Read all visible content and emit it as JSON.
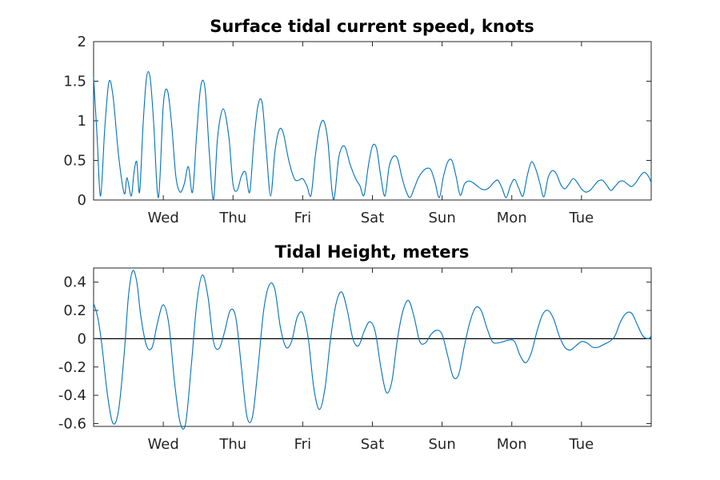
{
  "chart_data": [
    {
      "type": "line",
      "title": "Surface tidal current speed, knots",
      "xlabel": "",
      "ylabel": "",
      "xlim": [
        0,
        8.0
      ],
      "ylim": [
        0,
        2
      ],
      "yticks": [
        "0",
        "0.5",
        "1",
        "1.5",
        "2"
      ],
      "ytick_values": [
        0,
        0.5,
        1,
        1.5,
        2
      ],
      "xticks": [
        "Wed",
        "Thu",
        "Fri",
        "Sat",
        "Sun",
        "Mon",
        "Tue"
      ],
      "xtick_values": [
        1,
        2,
        3,
        4,
        5,
        6,
        7
      ],
      "grid": false,
      "series": [
        {
          "color": "#0072bd",
          "x": [
            0.0,
            0.05,
            0.1,
            0.16,
            0.22,
            0.28,
            0.36,
            0.44,
            0.48,
            0.54,
            0.58,
            0.62,
            0.66,
            0.71,
            0.76,
            0.81,
            0.86,
            0.93,
            1.0,
            1.06,
            1.12,
            1.18,
            1.24,
            1.3,
            1.36,
            1.42,
            1.48,
            1.54,
            1.6,
            1.66,
            1.72,
            1.78,
            1.86,
            1.94,
            2.0,
            2.06,
            2.12,
            2.18,
            2.24,
            2.3,
            2.36,
            2.42,
            2.48,
            2.54,
            2.6,
            2.66,
            2.72,
            2.8,
            2.88,
            2.94,
            3.0,
            3.06,
            3.12,
            3.18,
            3.24,
            3.3,
            3.36,
            3.44,
            3.52,
            3.6,
            3.68,
            3.76,
            3.82,
            3.88,
            3.94,
            4.0,
            4.06,
            4.12,
            4.18,
            4.24,
            4.3,
            4.36,
            4.42,
            4.48,
            4.54,
            4.6,
            4.66,
            4.72,
            4.78,
            4.84,
            4.9,
            4.96,
            5.02,
            5.08,
            5.14,
            5.2,
            5.26,
            5.32,
            5.38,
            5.44,
            5.5,
            5.56,
            5.62,
            5.68,
            5.74,
            5.8,
            5.86,
            5.92,
            5.98,
            6.04,
            6.1,
            6.16,
            6.22,
            6.28,
            6.34,
            6.4,
            6.46,
            6.52,
            6.58,
            6.64,
            6.7,
            6.76,
            6.82,
            6.88,
            6.94,
            7.0,
            7.06,
            7.12,
            7.18,
            7.24,
            7.3,
            7.36,
            7.42,
            7.48,
            7.54,
            7.6,
            7.66,
            7.72,
            7.78,
            7.84,
            7.9,
            7.96,
            8.0
          ],
          "values": [
            1.55,
            0.8,
            0.05,
            0.9,
            1.49,
            1.3,
            0.55,
            0.08,
            0.28,
            0.05,
            0.35,
            0.48,
            0.1,
            0.95,
            1.55,
            1.55,
            1.0,
            0.03,
            1.2,
            1.38,
            0.95,
            0.3,
            0.1,
            0.2,
            0.42,
            0.1,
            0.85,
            1.45,
            1.4,
            0.6,
            0.01,
            0.8,
            1.15,
            0.8,
            0.2,
            0.12,
            0.3,
            0.35,
            0.1,
            0.75,
            1.2,
            1.22,
            0.6,
            0.05,
            0.6,
            0.88,
            0.85,
            0.5,
            0.27,
            0.25,
            0.27,
            0.18,
            0.06,
            0.55,
            0.9,
            1.0,
            0.75,
            0.01,
            0.55,
            0.68,
            0.45,
            0.27,
            0.18,
            0.06,
            0.42,
            0.68,
            0.65,
            0.3,
            0.05,
            0.42,
            0.55,
            0.52,
            0.3,
            0.12,
            0.03,
            0.15,
            0.28,
            0.36,
            0.4,
            0.38,
            0.22,
            0.03,
            0.3,
            0.48,
            0.5,
            0.3,
            0.06,
            0.2,
            0.24,
            0.22,
            0.18,
            0.14,
            0.13,
            0.16,
            0.22,
            0.25,
            0.15,
            0.03,
            0.18,
            0.26,
            0.15,
            0.05,
            0.3,
            0.48,
            0.4,
            0.22,
            0.04,
            0.28,
            0.37,
            0.33,
            0.2,
            0.14,
            0.2,
            0.27,
            0.22,
            0.14,
            0.1,
            0.12,
            0.18,
            0.24,
            0.25,
            0.19,
            0.12,
            0.17,
            0.23,
            0.24,
            0.2,
            0.17,
            0.22,
            0.3,
            0.35,
            0.3,
            0.22
          ]
        }
      ]
    },
    {
      "type": "line",
      "title": "Tidal Height, meters",
      "xlabel": "",
      "ylabel": "",
      "xlim": [
        0,
        8.0
      ],
      "ylim": [
        -0.62,
        0.5
      ],
      "yticks": [
        "-0.6",
        "-0.4",
        "-0.2",
        "0",
        "0.2",
        "0.4"
      ],
      "ytick_values": [
        -0.6,
        -0.4,
        -0.2,
        0,
        0.2,
        0.4
      ],
      "xticks": [
        "Wed",
        "Thu",
        "Fri",
        "Sat",
        "Sun",
        "Mon",
        "Tue"
      ],
      "xtick_values": [
        1,
        2,
        3,
        4,
        5,
        6,
        7
      ],
      "grid": false,
      "zero_line": true,
      "series": [
        {
          "color": "#0072bd",
          "x": [
            0.0,
            0.06,
            0.12,
            0.2,
            0.28,
            0.36,
            0.44,
            0.5,
            0.56,
            0.62,
            0.68,
            0.76,
            0.84,
            0.92,
            1.0,
            1.08,
            1.16,
            1.24,
            1.32,
            1.4,
            1.48,
            1.56,
            1.64,
            1.72,
            1.8,
            1.88,
            1.96,
            2.04,
            2.12,
            2.2,
            2.28,
            2.36,
            2.44,
            2.52,
            2.6,
            2.68,
            2.76,
            2.84,
            2.92,
            3.0,
            3.08,
            3.16,
            3.24,
            3.32,
            3.4,
            3.48,
            3.56,
            3.64,
            3.72,
            3.8,
            3.88,
            3.96,
            4.04,
            4.12,
            4.2,
            4.28,
            4.36,
            4.44,
            4.52,
            4.6,
            4.68,
            4.76,
            4.84,
            4.92,
            5.0,
            5.08,
            5.16,
            5.24,
            5.32,
            5.4,
            5.48,
            5.56,
            5.64,
            5.72,
            5.8,
            5.88,
            5.96,
            6.04,
            6.12,
            6.2,
            6.28,
            6.36,
            6.44,
            6.52,
            6.6,
            6.68,
            6.76,
            6.84,
            6.92,
            7.0,
            7.08,
            7.16,
            7.24,
            7.32,
            7.4,
            7.48,
            7.56,
            7.64,
            7.72,
            7.8,
            7.88,
            7.96,
            8.0
          ],
          "values": [
            0.25,
            0.15,
            -0.05,
            -0.4,
            -0.6,
            -0.5,
            -0.1,
            0.3,
            0.48,
            0.4,
            0.15,
            -0.05,
            -0.06,
            0.12,
            0.24,
            0.1,
            -0.3,
            -0.59,
            -0.6,
            -0.2,
            0.25,
            0.45,
            0.3,
            -0.02,
            -0.07,
            0.05,
            0.2,
            0.15,
            -0.2,
            -0.55,
            -0.55,
            -0.2,
            0.2,
            0.38,
            0.35,
            0.08,
            -0.06,
            -0.02,
            0.15,
            0.18,
            0.0,
            -0.35,
            -0.5,
            -0.35,
            0.0,
            0.25,
            0.33,
            0.2,
            0.0,
            -0.05,
            0.05,
            0.12,
            0.05,
            -0.2,
            -0.38,
            -0.3,
            0.0,
            0.2,
            0.27,
            0.15,
            -0.02,
            -0.03,
            0.03,
            0.06,
            0.03,
            -0.12,
            -0.27,
            -0.25,
            -0.05,
            0.12,
            0.22,
            0.2,
            0.08,
            -0.02,
            -0.03,
            -0.02,
            -0.01,
            -0.02,
            -0.12,
            -0.17,
            -0.1,
            0.05,
            0.17,
            0.2,
            0.14,
            0.02,
            -0.06,
            -0.08,
            -0.05,
            -0.02,
            -0.03,
            -0.06,
            -0.06,
            -0.04,
            -0.02,
            0.02,
            0.12,
            0.18,
            0.18,
            0.1,
            0.02,
            0.0,
            0.02
          ]
        }
      ]
    }
  ]
}
